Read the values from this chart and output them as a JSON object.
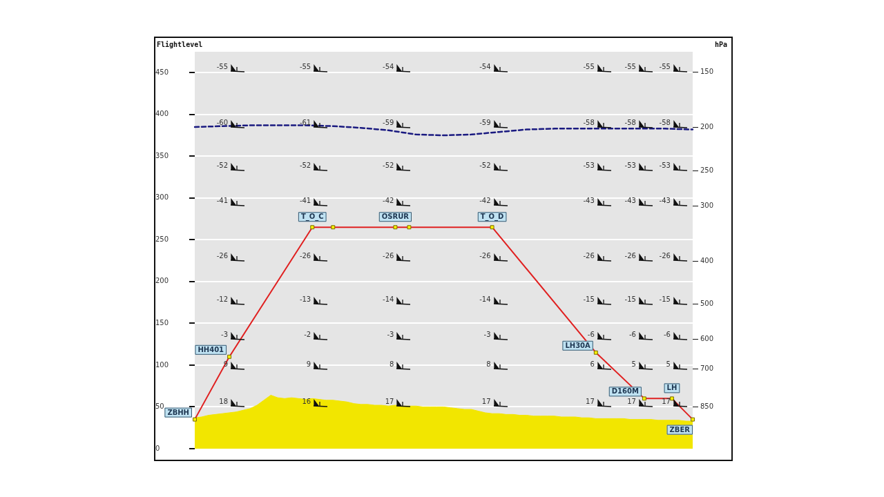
{
  "chart_data": {
    "type": "line",
    "ylabel": "Flightlevel",
    "y2label": "hPa",
    "categories": [
      null,
      null,
      null,
      null,
      null,
      null,
      null,
      null,
      null,
      null,
      null,
      null,
      null,
      null,
      null,
      null,
      null,
      null,
      null,
      null,
      null,
      null,
      null,
      null,
      null,
      null,
      null,
      null,
      null,
      null,
      null,
      null,
      null,
      null,
      null,
      null,
      null,
      null,
      null,
      null,
      null,
      null,
      null,
      null,
      null,
      null,
      null,
      null,
      null,
      null,
      null,
      null,
      null,
      null,
      null,
      null,
      null,
      null,
      null,
      null,
      null,
      null,
      null,
      null,
      null,
      null,
      null,
      null,
      null,
      null,
      null,
      null,
      null
    ],
    "ylim": [
      0,
      475
    ],
    "yticks": [
      0,
      50,
      100,
      150,
      200,
      250,
      300,
      350,
      400,
      450
    ],
    "log": "y2",
    "y2lim": [
      1057,
      135
    ],
    "y2ticks": [
      150,
      200,
      250,
      300,
      400,
      500,
      600,
      700,
      850
    ],
    "grid": "y",
    "legend": false,
    "tick_labels": "y",
    "series": [
      {
        "color": "#e02020",
        "marker": "square",
        "values": [
          35,
          null,
          null,
          null,
          null,
          110,
          null,
          null,
          null,
          null,
          null,
          null,
          null,
          null,
          null,
          null,
          null,
          265,
          null,
          null,
          265,
          null,
          null,
          null,
          null,
          null,
          null,
          null,
          null,
          265,
          null,
          265,
          null,
          null,
          null,
          null,
          null,
          null,
          null,
          null,
          null,
          null,
          null,
          265,
          null,
          null,
          null,
          null,
          null,
          null,
          null,
          null,
          null,
          null,
          null,
          null,
          null,
          null,
          115,
          null,
          null,
          null,
          null,
          null,
          null,
          60,
          null,
          null,
          null,
          60,
          null,
          null,
          35
        ],
        "value_labels": [
          "ZBHH",
          null,
          null,
          null,
          null,
          "HH401",
          null,
          null,
          null,
          null,
          null,
          null,
          null,
          null,
          null,
          null,
          null,
          "T_O_C",
          null,
          null,
          null,
          null,
          null,
          null,
          null,
          null,
          null,
          null,
          null,
          "OSRUR",
          null,
          null,
          null,
          null,
          null,
          null,
          null,
          null,
          null,
          null,
          null,
          null,
          null,
          "T_O_D",
          null,
          null,
          null,
          null,
          null,
          null,
          null,
          null,
          null,
          null,
          null,
          null,
          null,
          null,
          "LH30A",
          null,
          null,
          null,
          null,
          null,
          null,
          "D160M",
          null,
          null,
          null,
          "LH",
          null,
          null,
          "ZBER"
        ]
      },
      {
        "type": "line",
        "color": "#1a1a80",
        "marker": "none",
        "line_style": "dashed",
        "values": [
          385,
          null,
          null,
          null,
          386,
          null,
          null,
          null,
          387,
          null,
          null,
          null,
          387,
          null,
          null,
          null,
          387,
          null,
          null,
          null,
          386,
          null,
          null,
          null,
          384,
          null,
          null,
          null,
          381,
          null,
          null,
          null,
          376,
          null,
          null,
          null,
          375,
          null,
          null,
          null,
          376,
          null,
          null,
          null,
          379,
          null,
          null,
          null,
          382,
          null,
          null,
          null,
          383,
          null,
          null,
          null,
          383,
          null,
          null,
          null,
          383,
          null,
          null,
          null,
          383,
          null,
          null,
          null,
          383,
          null,
          null,
          null,
          382
        ]
      },
      {
        "type": "area",
        "color": "#f2e600",
        "marker": "none",
        "values": [
          37,
          38,
          40,
          41,
          42,
          43,
          44,
          46,
          48,
          52,
          58,
          64,
          61,
          60,
          61,
          60,
          59,
          60,
          59,
          58,
          58,
          57,
          56,
          54,
          53,
          53,
          52,
          52,
          51,
          52,
          51,
          51,
          51,
          50,
          50,
          50,
          50,
          49,
          48,
          47,
          47,
          45,
          43,
          42,
          42,
          41,
          41,
          40,
          40,
          39,
          39,
          39,
          39,
          38,
          38,
          38,
          37,
          37,
          36,
          36,
          36,
          36,
          36,
          35,
          35,
          35,
          35,
          34,
          34,
          34,
          34,
          33,
          33
        ]
      }
    ],
    "annotations": [
      "-55",
      "-55",
      "-54",
      "-54",
      "-55",
      "-55",
      "-55",
      "-60",
      "-61",
      "-59",
      "-59",
      "-58",
      "-58",
      "-58",
      "-52",
      "-52",
      "-52",
      "-52",
      "-53",
      "-53",
      "-53",
      "-41",
      "-41",
      "-42",
      "-42",
      "-43",
      "-43",
      "-43",
      "-26",
      "-26",
      "-26",
      "-26",
      "-26",
      "-26",
      "-26",
      "-12",
      "-13",
      "-14",
      "-14",
      "-15",
      "-15",
      "-15",
      "-3",
      "-2",
      "-3",
      "-3",
      "-6",
      "-6",
      "-6",
      "9",
      "9",
      "8",
      "8",
      "6",
      "5",
      "5",
      "18",
      "16",
      "17",
      "17",
      "17",
      "17",
      "17"
    ]
  }
}
